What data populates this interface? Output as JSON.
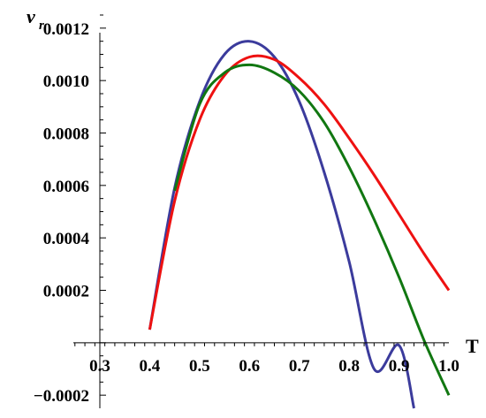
{
  "chart_data": {
    "type": "line",
    "title": "",
    "xlabel": "T",
    "ylabel_main": "v",
    "ylabel_sub": "r",
    "xlim": [
      0.3,
      1.0
    ],
    "ylim": [
      -0.00025,
      0.00125
    ],
    "x_ticks": [
      {
        "value": 0.3,
        "label": "0.3"
      },
      {
        "value": 0.4,
        "label": "0.4"
      },
      {
        "value": 0.5,
        "label": "0.5"
      },
      {
        "value": 0.6,
        "label": "0.6"
      },
      {
        "value": 0.7,
        "label": "0.7"
      },
      {
        "value": 0.8,
        "label": "0.8"
      },
      {
        "value": 0.9,
        "label": "0.9"
      },
      {
        "value": 1.0,
        "label": "1.0"
      }
    ],
    "y_ticks": [
      {
        "value": -0.0002,
        "label": "−0.0002"
      },
      {
        "value": 0.0002,
        "label": "0.0002"
      },
      {
        "value": 0.0004,
        "label": "0.0004"
      },
      {
        "value": 0.0006,
        "label": "0.0006"
      },
      {
        "value": 0.0008,
        "label": "0.0008"
      },
      {
        "value": 0.001,
        "label": "0.0010"
      },
      {
        "value": 0.0012,
        "label": "0.0012"
      }
    ],
    "grid": false,
    "series": [
      {
        "color": "#3b3b9c",
        "x": [
          0.4,
          0.45,
          0.5,
          0.55,
          0.6,
          0.65,
          0.7,
          0.75,
          0.8,
          0.85,
          0.9,
          0.93
        ],
        "y": [
          5e-05,
          0.00059,
          0.00092,
          0.0011,
          0.00115,
          0.00109,
          0.00092,
          0.00065,
          0.00031,
          -0.0001,
          -1e-05,
          -0.00025
        ]
      },
      {
        "color": "#ee1111",
        "x": [
          0.4,
          0.45,
          0.5,
          0.55,
          0.6,
          0.65,
          0.7,
          0.75,
          0.8,
          0.85,
          0.9,
          0.95,
          1.0
        ],
        "y": [
          5e-05,
          0.00054,
          0.00085,
          0.00102,
          0.00109,
          0.00108,
          0.00101,
          0.00091,
          0.00078,
          0.00064,
          0.00049,
          0.00034,
          0.0002
        ]
      },
      {
        "color": "#117711",
        "x": [
          0.45,
          0.5,
          0.55,
          0.6,
          0.65,
          0.7,
          0.75,
          0.8,
          0.85,
          0.9,
          0.95,
          1.0
        ],
        "y": [
          0.00058,
          0.00091,
          0.00103,
          0.00106,
          0.00103,
          0.00096,
          0.00084,
          0.00067,
          0.00047,
          0.00025,
          1e-05,
          -0.0002
        ]
      }
    ]
  }
}
